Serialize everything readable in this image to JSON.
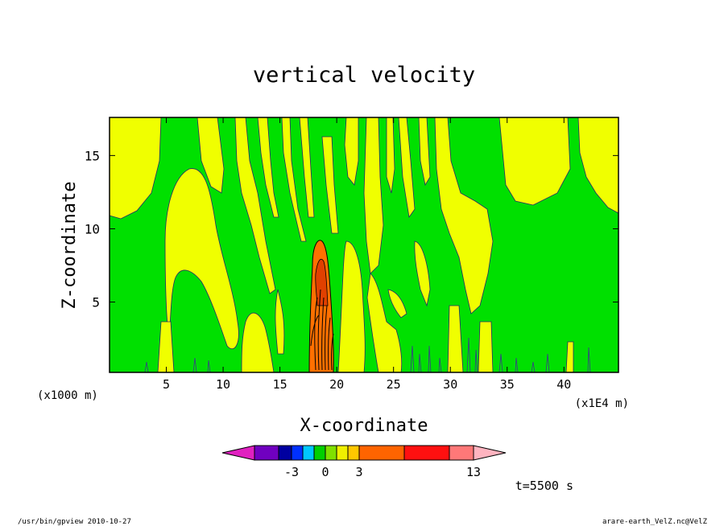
{
  "chart_data": {
    "type": "heatmap",
    "title": "vertical velocity",
    "xlabel": "X-coordinate",
    "ylabel": "Z-coordinate",
    "x_unit_left": "(x1000 m)",
    "x_unit_right": "(x1E4 m)",
    "x_ticks": [
      5,
      10,
      15,
      20,
      25,
      30,
      35,
      40
    ],
    "y_ticks": [
      5,
      10,
      15
    ],
    "xlim": [
      0,
      44.8
    ],
    "ylim": [
      0.2,
      17.6
    ],
    "time_label": "t=5500 s",
    "colorbar": {
      "tick_labels": [
        "-3",
        "0",
        "3",
        "13"
      ],
      "colors": [
        "#e020c0",
        "#7000c0",
        "#0000a0",
        "#0030ff",
        "#00c8ff",
        "#00d000",
        "#80e000",
        "#f0f000",
        "#ffc800",
        "#ff6400",
        "#ff1010",
        "#ff7878",
        "#ffb4c0"
      ]
    },
    "field_colors": {
      "weak_positive": "#f0ff00",
      "weak_negative": "#00e000",
      "strong": "#ff7000",
      "core": "#e04000"
    }
  },
  "footer": {
    "left": "/usr/bin/gpview   2010-10-27",
    "right": "arare-earth_VelZ.nc@VelZ"
  }
}
